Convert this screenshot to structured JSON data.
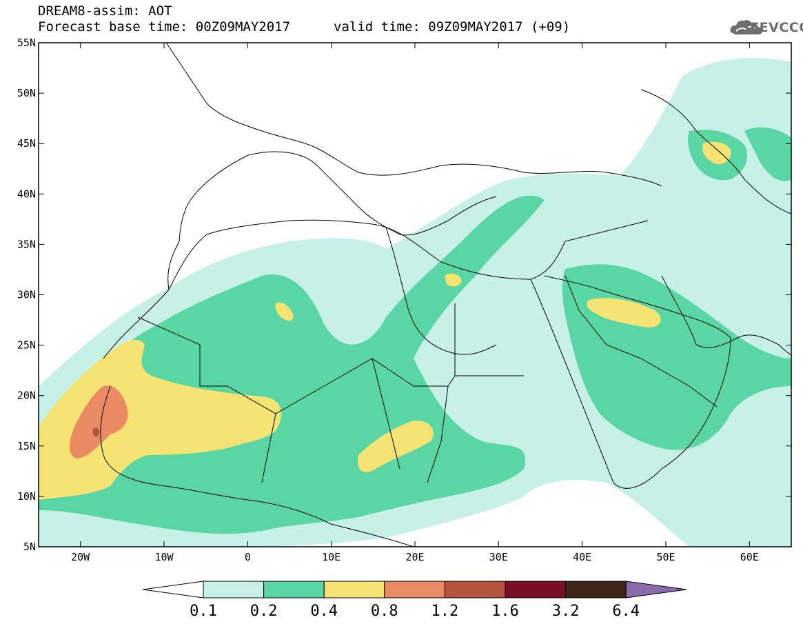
{
  "title": {
    "line1": "DREAM8-assim: AOT",
    "line2": "Forecast base time: 00Z09MAY2017",
    "valid": "valid time: 09Z09MAY2017 (+09)"
  },
  "logo": {
    "text": "SEEVCCC",
    "icon": "cloud-icon"
  },
  "map": {
    "lon_range": [
      -25,
      65
    ],
    "lat_range": [
      5,
      55
    ],
    "lat_ticks": [
      {
        "value": 55,
        "label": "55N"
      },
      {
        "value": 50,
        "label": "50N"
      },
      {
        "value": 45,
        "label": "45N"
      },
      {
        "value": 40,
        "label": "40N"
      },
      {
        "value": 35,
        "label": "35N"
      },
      {
        "value": 30,
        "label": "30N"
      },
      {
        "value": 25,
        "label": "25N"
      },
      {
        "value": 20,
        "label": "20N"
      },
      {
        "value": 15,
        "label": "15N"
      },
      {
        "value": 10,
        "label": "10N"
      },
      {
        "value": 5,
        "label": "5N"
      }
    ],
    "lon_ticks": [
      {
        "value": -20,
        "label": "20W"
      },
      {
        "value": -10,
        "label": "10W"
      },
      {
        "value": 0,
        "label": "0"
      },
      {
        "value": 10,
        "label": "10E"
      },
      {
        "value": 20,
        "label": "20E"
      },
      {
        "value": 30,
        "label": "30E"
      },
      {
        "value": 40,
        "label": "40E"
      },
      {
        "value": 50,
        "label": "50E"
      },
      {
        "value": 60,
        "label": "60E"
      }
    ]
  },
  "colorbar": {
    "levels": [
      "0.1",
      "0.2",
      "0.4",
      "0.8",
      "1.2",
      "1.6",
      "3.2",
      "6.4"
    ],
    "colors": [
      "#ffffff",
      "#c7f0e6",
      "#5ad6a5",
      "#f5e373",
      "#ea8a62",
      "#b5533f",
      "#7a0e24",
      "#3e2716",
      "#8a6aa8"
    ]
  }
}
